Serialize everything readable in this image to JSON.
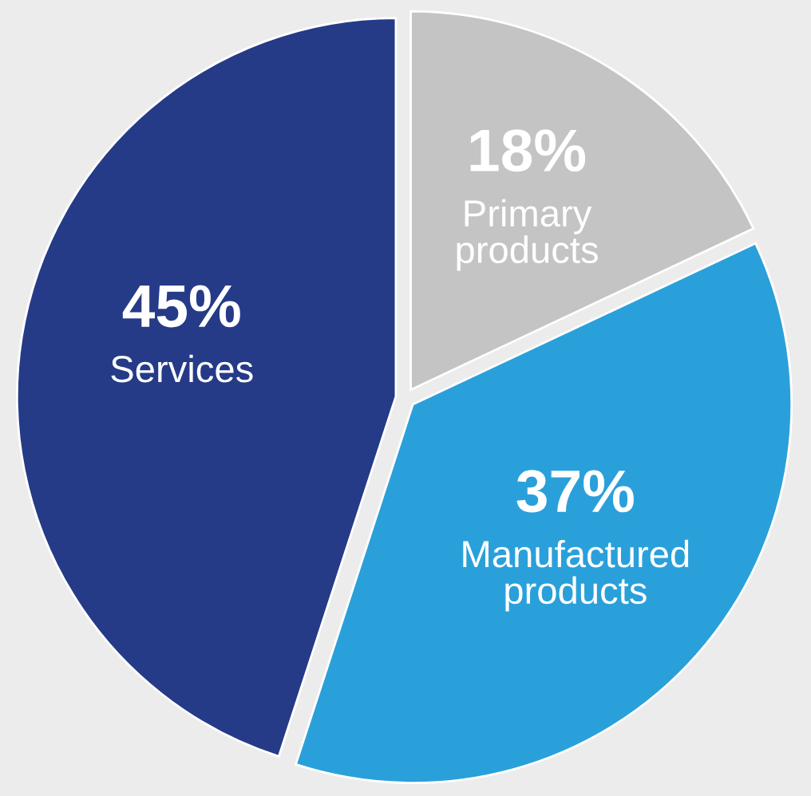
{
  "chart_data": {
    "type": "pie",
    "categories": [
      "Primary products",
      "Manufactured products",
      "Services"
    ],
    "values": [
      18,
      37,
      45
    ],
    "colors": [
      "#c4c4c4",
      "#2aa0da",
      "#253b88"
    ],
    "value_labels": [
      "18%",
      "37%",
      "45%"
    ]
  }
}
